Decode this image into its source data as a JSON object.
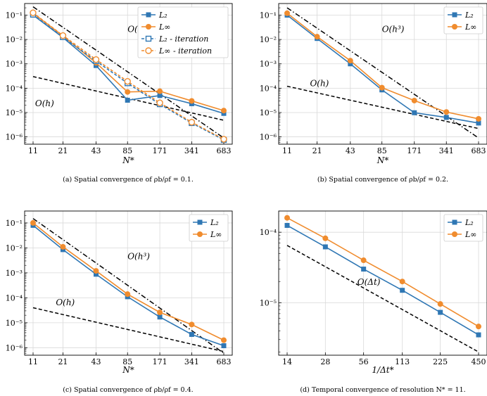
{
  "chart_data": [
    {
      "type": "line",
      "id": "a",
      "xscale": "log2",
      "yscale": "log10",
      "x": [
        11,
        21,
        43,
        85,
        171,
        341,
        683
      ],
      "xticklabels": [
        "11",
        "21",
        "43",
        "85",
        "171",
        "341",
        "683"
      ],
      "ylim": [
        5e-07,
        0.3
      ],
      "yticks": [
        1e-06,
        1e-05,
        0.0001,
        0.001,
        0.01,
        0.1
      ],
      "yticklabels": [
        "10⁻⁶",
        "10⁻⁵",
        "10⁻⁴",
        "10⁻³",
        "10⁻²",
        "10⁻¹"
      ],
      "xlabel": "N*",
      "caption": "(a) Spatial convergence of ρb/ρf = 0.1.",
      "series": [
        {
          "name": "L₂",
          "color": "#2f77b4",
          "marker": "square",
          "style": "solid",
          "values": [
            0.1,
            0.012,
            0.00085,
            3.2e-05,
            5e-05,
            2.3e-05,
            9.2e-06
          ]
        },
        {
          "name": "L∞",
          "color": "#f08c2e",
          "marker": "circle",
          "style": "solid",
          "values": [
            0.12,
            0.014,
            0.0011,
            7e-05,
            7.5e-05,
            3e-05,
            1.2e-05
          ]
        },
        {
          "name": "L₂ - iteration",
          "color": "#2f77b4",
          "marker": "square-open",
          "style": "dashed",
          "values": [
            0.105,
            0.0125,
            0.0013,
            0.00016,
            2.2e-05,
            3.7e-06,
            7.5e-07
          ]
        },
        {
          "name": "L∞ - iteration",
          "color": "#f08c2e",
          "marker": "circle-open",
          "style": "dashed",
          "values": [
            0.125,
            0.0145,
            0.0015,
            0.00019,
            2.5e-05,
            4e-06,
            8e-07
          ]
        }
      ],
      "refs": [
        {
          "label": "O(h³)",
          "style": "dashdot",
          "x": [
            11,
            683
          ],
          "y": [
            0.22,
            9e-07
          ],
          "label_x": 85,
          "label_y": 0.02
        },
        {
          "label": "O(h)",
          "style": "dashed",
          "x": [
            11,
            683
          ],
          "y": [
            0.0003,
            4.8e-06
          ],
          "label_x": 11.5,
          "label_y": 1.8e-05
        }
      ],
      "legend_entries": [
        "L₂",
        "L∞",
        "L₂ - iteration",
        "L∞ - iteration"
      ],
      "legend": "top-right"
    },
    {
      "type": "line",
      "id": "b",
      "xscale": "log2",
      "yscale": "log10",
      "x": [
        11,
        21,
        43,
        85,
        171,
        341,
        683
      ],
      "xticklabels": [
        "11",
        "21",
        "43",
        "85",
        "171",
        "341",
        "683"
      ],
      "ylim": [
        5e-07,
        0.3
      ],
      "yticks": [
        1e-06,
        1e-05,
        0.0001,
        0.001,
        0.01,
        0.1
      ],
      "yticklabels": [
        "10⁻⁶",
        "10⁻⁵",
        "10⁻⁴",
        "10⁻³",
        "10⁻²",
        "10⁻¹"
      ],
      "xlabel": "N*",
      "caption": "(b) Spatial convergence of ρb/ρf = 0.2.",
      "series": [
        {
          "name": "L₂",
          "color": "#2f77b4",
          "marker": "square",
          "style": "solid",
          "values": [
            0.1,
            0.011,
            0.001,
            8.5e-05,
            9.8e-06,
            6.3e-06,
            3.7e-06
          ]
        },
        {
          "name": "L∞",
          "color": "#f08c2e",
          "marker": "circle",
          "style": "solid",
          "values": [
            0.12,
            0.013,
            0.00135,
            0.000105,
            3.1e-05,
            1.05e-05,
            5.5e-06
          ]
        }
      ],
      "refs": [
        {
          "label": "O(h³)",
          "style": "dashdot",
          "x": [
            11,
            683
          ],
          "y": [
            0.2,
            9e-07
          ],
          "label_x": 85,
          "label_y": 0.02
        },
        {
          "label": "O(h)",
          "style": "dashed",
          "x": [
            11,
            683
          ],
          "y": [
            0.00012,
            2.2e-06
          ],
          "label_x": 18,
          "label_y": 0.00012
        }
      ],
      "legend_entries": [
        "L₂",
        "L∞"
      ],
      "legend": "top-right"
    },
    {
      "type": "line",
      "id": "c",
      "xscale": "log2",
      "yscale": "log10",
      "x": [
        11,
        21,
        43,
        85,
        171,
        341,
        683
      ],
      "xticklabels": [
        "11",
        "21",
        "43",
        "85",
        "171",
        "341",
        "683"
      ],
      "ylim": [
        5e-07,
        0.3
      ],
      "yticks": [
        1e-06,
        1e-05,
        0.0001,
        0.001,
        0.01,
        0.1
      ],
      "yticklabels": [
        "10⁻⁶",
        "10⁻⁵",
        "10⁻⁴",
        "10⁻³",
        "10⁻²",
        "10⁻¹"
      ],
      "xlabel": "N*",
      "caption": "(c) Spatial convergence of ρb/ρf = 0.4.",
      "series": [
        {
          "name": "L₂",
          "color": "#2f77b4",
          "marker": "square",
          "style": "solid",
          "values": [
            0.08,
            0.0085,
            0.00088,
            0.00011,
            1.7e-05,
            3.4e-06,
            1.2e-06
          ]
        },
        {
          "name": "L∞",
          "color": "#f08c2e",
          "marker": "circle",
          "style": "solid",
          "values": [
            0.1,
            0.011,
            0.0012,
            0.00014,
            2.6e-05,
            8.5e-06,
            2e-06
          ]
        }
      ],
      "refs": [
        {
          "label": "O(h³)",
          "style": "dashdot",
          "x": [
            11,
            683
          ],
          "y": [
            0.15,
            6e-07
          ],
          "label_x": 85,
          "label_y": 0.0035
        },
        {
          "label": "O(h)",
          "style": "dashed",
          "x": [
            11,
            683
          ],
          "y": [
            4e-05,
            7e-07
          ],
          "label_x": 18,
          "label_y": 5e-05
        }
      ],
      "legend_entries": [
        "L₂",
        "L∞"
      ],
      "legend": "top-right"
    },
    {
      "type": "line",
      "id": "d",
      "xscale": "log2",
      "yscale": "log10",
      "x": [
        14,
        28,
        56,
        113,
        225,
        450
      ],
      "xticklabels": [
        "14",
        "28",
        "56",
        "113",
        "225",
        "450"
      ],
      "ylim": [
        1.8e-06,
        0.0002
      ],
      "yticks": [
        1e-05,
        0.0001
      ],
      "yticklabels": [
        "10⁻⁵",
        "10⁻⁴"
      ],
      "xlabel": "1/Δt*",
      "caption": "(d) Temporal convergence of resolution N* = 11.",
      "series": [
        {
          "name": "L₂",
          "color": "#2f77b4",
          "marker": "square",
          "style": "solid",
          "values": [
            0.000125,
            6.2e-05,
            3e-05,
            1.5e-05,
            7.3e-06,
            3.5e-06
          ]
        },
        {
          "name": "L∞",
          "color": "#f08c2e",
          "marker": "circle",
          "style": "solid",
          "values": [
            0.00016,
            8.2e-05,
            4e-05,
            2e-05,
            9.6e-06,
            4.6e-06
          ]
        }
      ],
      "refs": [
        {
          "label": "O(Δt)",
          "style": "dashed",
          "x": [
            14,
            450
          ],
          "y": [
            6.5e-05,
            2e-06
          ],
          "label_x": 50,
          "label_y": 1.8e-05
        }
      ],
      "legend_entries": [
        "L₂",
        "L∞"
      ],
      "legend": "top-right"
    }
  ]
}
